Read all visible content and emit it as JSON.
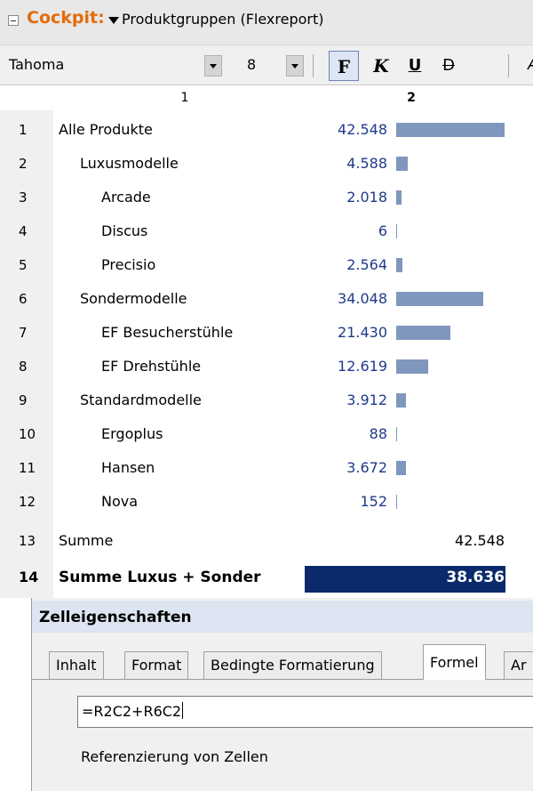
{
  "header": {
    "cockpit_label": "Cockpit:",
    "report_name": "Produktgruppen (Flexreport)"
  },
  "toolbar": {
    "font_name": "Tahoma",
    "font_size": "8",
    "bold": "F",
    "italic": "K",
    "underline": "U",
    "strikethrough": "D",
    "cut_button": "A"
  },
  "columns": [
    "1",
    "2"
  ],
  "rows": [
    {
      "num": "1",
      "label": "Alle Produkte",
      "value": "42.548",
      "level": 0,
      "bar_value": 42548
    },
    {
      "num": "2",
      "label": "Luxusmodelle",
      "value": "4.588",
      "level": 1,
      "bar_value": 4588
    },
    {
      "num": "3",
      "label": "Arcade",
      "value": "2.018",
      "level": 2,
      "bar_value": 2018
    },
    {
      "num": "4",
      "label": "Discus",
      "value": "6",
      "level": 2,
      "bar_value": 6
    },
    {
      "num": "5",
      "label": "Precisio",
      "value": "2.564",
      "level": 2,
      "bar_value": 2564
    },
    {
      "num": "6",
      "label": "Sondermodelle",
      "value": "34.048",
      "level": 1,
      "bar_value": 34048
    },
    {
      "num": "7",
      "label": "EF Besucherstühle",
      "value": "21.430",
      "level": 2,
      "bar_value": 21430
    },
    {
      "num": "8",
      "label": "EF Drehstühle",
      "value": "12.619",
      "level": 2,
      "bar_value": 12619
    },
    {
      "num": "9",
      "label": "Standardmodelle",
      "value": "3.912",
      "level": 1,
      "bar_value": 3912
    },
    {
      "num": "10",
      "label": "Ergoplus",
      "value": "88",
      "level": 2,
      "bar_value": 88
    },
    {
      "num": "11",
      "label": "Hansen",
      "value": "3.672",
      "level": 2,
      "bar_value": 3672
    },
    {
      "num": "12",
      "label": "Nova",
      "value": "152",
      "level": 2,
      "bar_value": 152
    }
  ],
  "sum_row": {
    "num": "13",
    "label": "Summe",
    "value": "42.548"
  },
  "total_row": {
    "num": "14",
    "label": "Summe Luxus + Sonder",
    "value": "38.636"
  },
  "panel": {
    "title": "Zelleigenschaften",
    "tabs": [
      "Inhalt",
      "Format",
      "Bedingte Formatierung",
      "Formel",
      "Ar"
    ],
    "active_tab": "Formel",
    "formula": "=R2C2+R6C2",
    "hint": "Referenzierung von Zellen"
  },
  "colors": {
    "accent": "#e36c0a",
    "bar": "#7f97bd",
    "value_text": "#1f3a8a",
    "total_bg": "#0a2a6b"
  }
}
